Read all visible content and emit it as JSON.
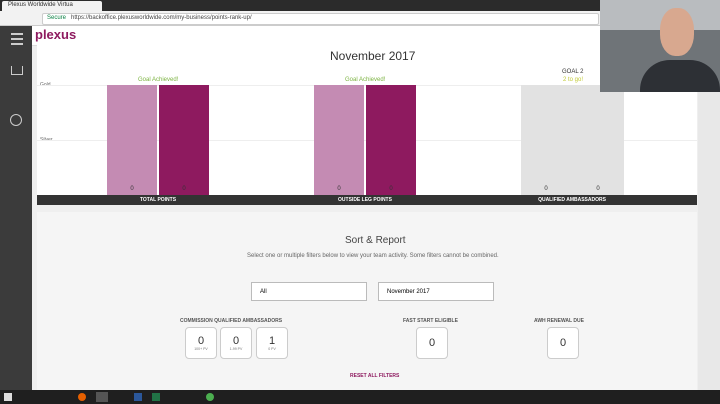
{
  "browser": {
    "tab_title": "Plexus Worldwide Virtua",
    "secure": "Secure",
    "url": "https://backoffice.plexusworldwide.com/my-business/points-rank-up/"
  },
  "header": {
    "logo": "plexus"
  },
  "progress": {
    "title": "November 2017",
    "levels": [
      "Gold",
      "Silver"
    ],
    "groups": [
      {
        "status": "Goal Achieved!",
        "values": [
          "0",
          "0"
        ],
        "label": "TOTAL POINTS"
      },
      {
        "status": "Goal Achieved!",
        "values": [
          "0",
          "0"
        ],
        "label": "OUTSIDE LEG POINTS"
      },
      {
        "goal": "GOAL 2",
        "status": "2 to go!",
        "values": [
          "0",
          "0"
        ],
        "label": "QUALIFIED AMBASSADORS"
      }
    ]
  },
  "sort_report": {
    "title": "Sort & Report",
    "description": "Select one or multiple filters below to view your team activity. Some filters cannot be combined.",
    "filters": [
      "All",
      "November 2017"
    ],
    "commission": {
      "title": "COMMISSION QUALIFIED AMBASSADORS",
      "boxes": [
        {
          "value": "0",
          "label": "100+ PV"
        },
        {
          "value": "0",
          "label": "1-99 PV"
        },
        {
          "value": "1",
          "label": "0 PV"
        }
      ]
    },
    "fast_start": {
      "title": "FAST START ELIGIBLE",
      "value": "0"
    },
    "awh": {
      "title": "AWH RENEWAL DUE",
      "value": "0"
    },
    "reset": "RESET ALL FILTERS"
  }
}
